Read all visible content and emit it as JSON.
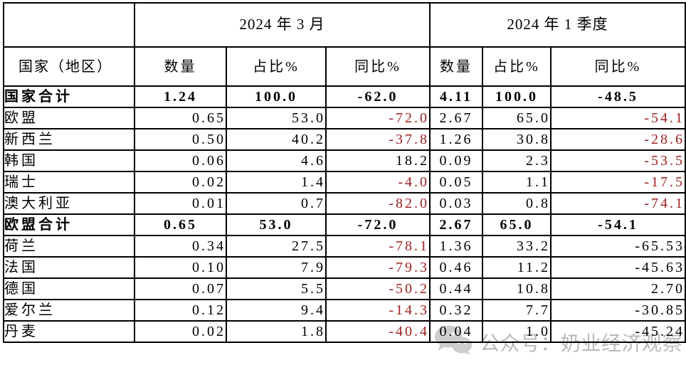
{
  "table": {
    "period_march": "2024 年 3 月",
    "period_q1": "2024 年 1 季度",
    "columns": {
      "country": "国家（地区）",
      "qty": "数量",
      "share": "占比%",
      "yoy": "同比%"
    },
    "rows": [
      {
        "name": "国家合计",
        "bold": true,
        "values": [
          "1.24",
          "100.0",
          "-62.0",
          "4.11",
          "100.0",
          "-48.5"
        ],
        "red": [
          false,
          false,
          false,
          false,
          false,
          false
        ]
      },
      {
        "name": "欧盟",
        "bold": false,
        "values": [
          "0.65",
          "53.0",
          "-72.0",
          "2.67",
          "65.0",
          "-54.1"
        ],
        "red": [
          false,
          false,
          true,
          false,
          false,
          true
        ]
      },
      {
        "name": "新西兰",
        "bold": false,
        "values": [
          "0.50",
          "40.2",
          "-37.8",
          "1.26",
          "30.8",
          "-28.6"
        ],
        "red": [
          false,
          false,
          true,
          false,
          false,
          true
        ]
      },
      {
        "name": "韩国",
        "bold": false,
        "values": [
          "0.06",
          "4.6",
          "18.2",
          "0.09",
          "2.3",
          "-53.5"
        ],
        "red": [
          false,
          false,
          false,
          false,
          false,
          true
        ]
      },
      {
        "name": "瑞士",
        "bold": false,
        "values": [
          "0.02",
          "1.4",
          "-4.0",
          "0.05",
          "1.1",
          "-17.5"
        ],
        "red": [
          false,
          false,
          true,
          false,
          false,
          true
        ]
      },
      {
        "name": "澳大利亚",
        "bold": false,
        "values": [
          "0.01",
          "0.7",
          "-82.0",
          "0.03",
          "0.8",
          "-74.1"
        ],
        "red": [
          false,
          false,
          true,
          false,
          false,
          true
        ]
      },
      {
        "name": "欧盟合计",
        "bold": true,
        "values": [
          "0.65",
          "53.0",
          "-72.0",
          "2.67",
          "65.0",
          "-54.1"
        ],
        "red": [
          false,
          false,
          false,
          false,
          false,
          false
        ]
      },
      {
        "name": "荷兰",
        "bold": false,
        "values": [
          "0.34",
          "27.5",
          "-78.1",
          "1.36",
          "33.2",
          "-65.53"
        ],
        "red": [
          false,
          false,
          true,
          false,
          false,
          false
        ]
      },
      {
        "name": "法国",
        "bold": false,
        "values": [
          "0.10",
          "7.9",
          "-79.3",
          "0.46",
          "11.2",
          "-45.63"
        ],
        "red": [
          false,
          false,
          true,
          false,
          false,
          false
        ]
      },
      {
        "name": "德国",
        "bold": false,
        "values": [
          "0.07",
          "5.5",
          "-50.2",
          "0.44",
          "10.8",
          "2.70"
        ],
        "red": [
          false,
          false,
          true,
          false,
          false,
          false
        ]
      },
      {
        "name": "爱尔兰",
        "bold": false,
        "values": [
          "0.12",
          "9.4",
          "-14.3",
          "0.32",
          "7.7",
          "-30.85"
        ],
        "red": [
          false,
          false,
          true,
          false,
          false,
          false
        ]
      },
      {
        "name": "丹麦",
        "bold": false,
        "values": [
          "0.02",
          "1.8",
          "-40.4",
          "0.04",
          "1.0",
          "-45.24"
        ],
        "red": [
          false,
          false,
          true,
          false,
          false,
          false
        ]
      }
    ]
  },
  "watermark": {
    "text": "公众号：奶业经济观察",
    "icon": "wechat-icon"
  },
  "colors": {
    "negative_red": "#9c1f1f",
    "border_black": "#000000",
    "watermark_grey": "#b9b9b9"
  }
}
